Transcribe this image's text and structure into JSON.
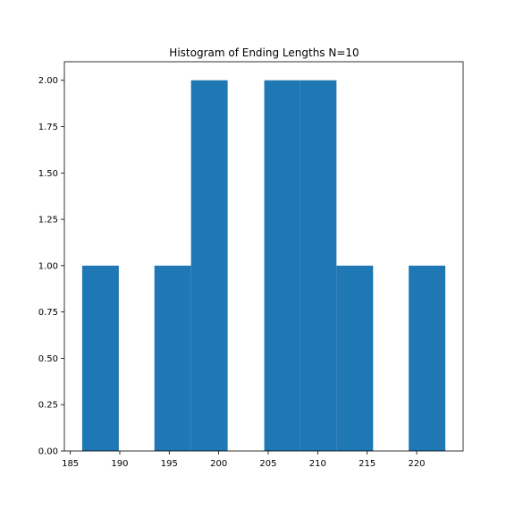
{
  "chart_data": {
    "type": "bar",
    "title": "Histogram of Ending Lengths N=10",
    "xlabel": "",
    "ylabel": "",
    "bins": [
      {
        "x0": 186.2,
        "x1": 189.9,
        "count": 1
      },
      {
        "x0": 189.9,
        "x1": 193.5,
        "count": 0
      },
      {
        "x0": 193.5,
        "x1": 197.2,
        "count": 1
      },
      {
        "x0": 197.2,
        "x1": 200.9,
        "count": 2
      },
      {
        "x0": 200.9,
        "x1": 204.6,
        "count": 0
      },
      {
        "x0": 204.6,
        "x1": 208.2,
        "count": 2
      },
      {
        "x0": 208.2,
        "x1": 211.9,
        "count": 2
      },
      {
        "x0": 211.9,
        "x1": 215.6,
        "count": 1
      },
      {
        "x0": 215.6,
        "x1": 219.2,
        "count": 0
      },
      {
        "x0": 219.2,
        "x1": 222.9,
        "count": 1
      }
    ],
    "xlim": [
      184.4,
      224.7
    ],
    "ylim": [
      0,
      2.1
    ],
    "xticks": [
      185,
      190,
      195,
      200,
      205,
      210,
      215,
      220
    ],
    "yticks": [
      "0.00",
      "0.25",
      "0.50",
      "0.75",
      "1.00",
      "1.25",
      "1.50",
      "1.75",
      "2.00"
    ],
    "bar_color": "#1f77b4",
    "grid": false,
    "legend": "none"
  }
}
